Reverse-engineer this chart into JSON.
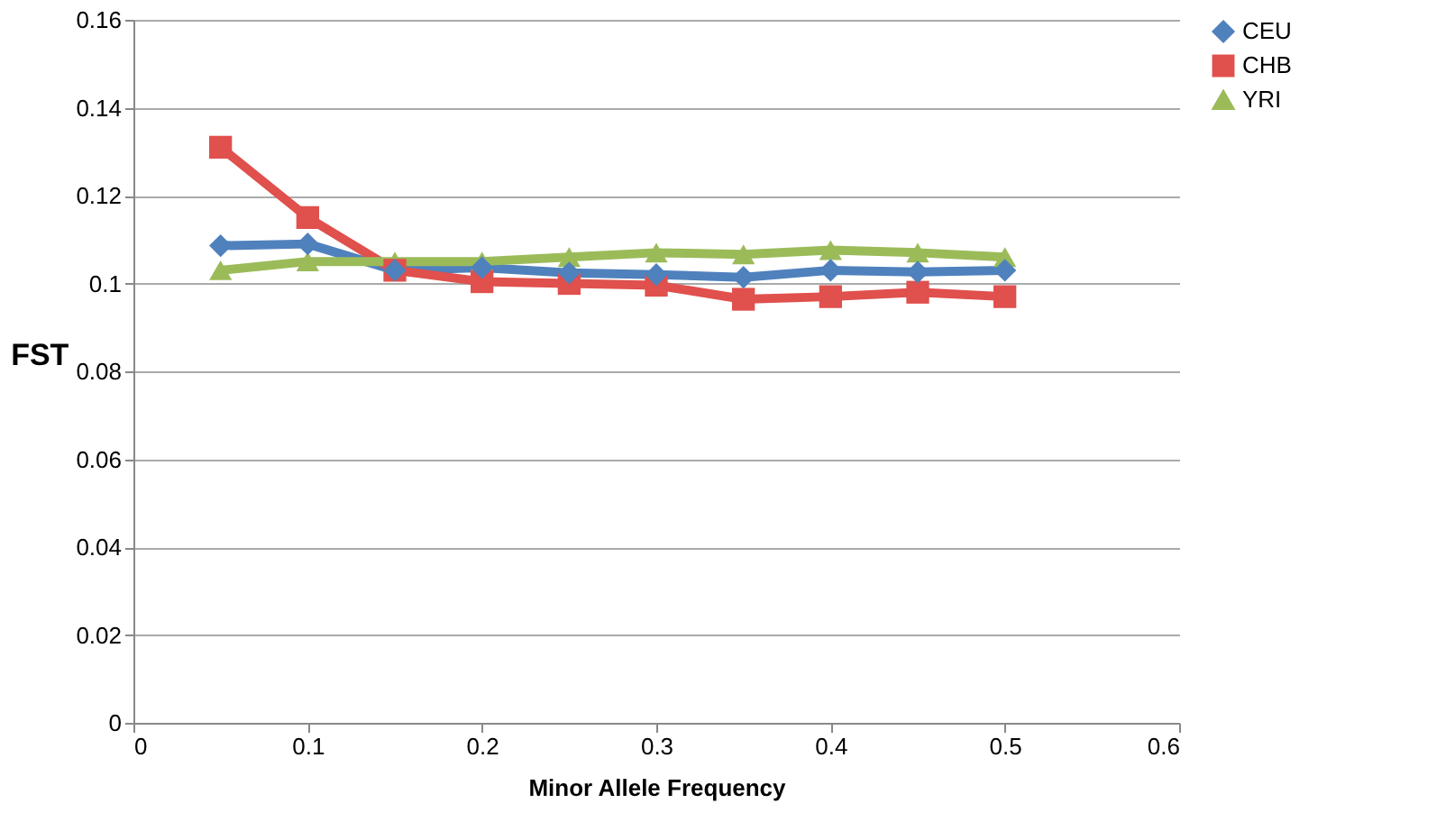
{
  "chart_data": {
    "type": "line",
    "xlabel": "Minor Allele Frequency",
    "ylabel": "FST",
    "x": [
      0.05,
      0.1,
      0.15,
      0.2,
      0.25,
      0.3,
      0.35,
      0.4,
      0.45,
      0.5
    ],
    "series": [
      {
        "name": "CEU",
        "color": "#4f81bd",
        "marker": "diamond",
        "values": [
          0.1086,
          0.109,
          0.103,
          0.1036,
          0.1024,
          0.102,
          0.1014,
          0.103,
          0.1026,
          0.103
        ]
      },
      {
        "name": "CHB",
        "color": "#e0504d",
        "marker": "square",
        "values": [
          0.131,
          0.115,
          0.103,
          0.1004,
          0.1,
          0.0996,
          0.0964,
          0.097,
          0.098,
          0.097
        ]
      },
      {
        "name": "YRI",
        "color": "#9bbb59",
        "marker": "triangle",
        "values": [
          0.103,
          0.105,
          0.105,
          0.105,
          0.106,
          0.107,
          0.1066,
          0.1076,
          0.107,
          0.106
        ]
      }
    ],
    "xlim": [
      0,
      0.6
    ],
    "xticks": [
      0,
      0.1,
      0.2,
      0.3,
      0.4,
      0.5,
      0.6
    ],
    "ylim": [
      0,
      0.16
    ],
    "yticks": [
      0,
      0.02,
      0.04,
      0.06,
      0.08,
      0.1,
      0.12,
      0.14,
      0.16
    ],
    "grid": "y",
    "legend": "right",
    "line_style": "solid"
  }
}
